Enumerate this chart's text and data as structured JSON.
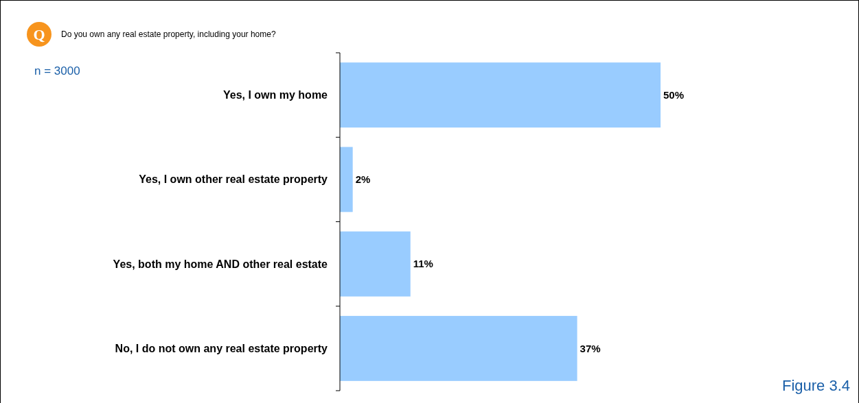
{
  "chart_data": {
    "type": "bar",
    "orientation": "horizontal",
    "title": "Do you own any real estate property, including your home?",
    "categories": [
      "Yes, I own my home",
      "Yes, I own other real estate property",
      "Yes, both my home AND other real estate",
      "No, I do not own any real estate property"
    ],
    "values": [
      50,
      2,
      11,
      37
    ],
    "value_labels": [
      "50%",
      "2%",
      "11%",
      "37%"
    ],
    "color": "#99ccff",
    "annotations": [
      "Q",
      "n = 3000",
      "Figure 3.4"
    ]
  }
}
